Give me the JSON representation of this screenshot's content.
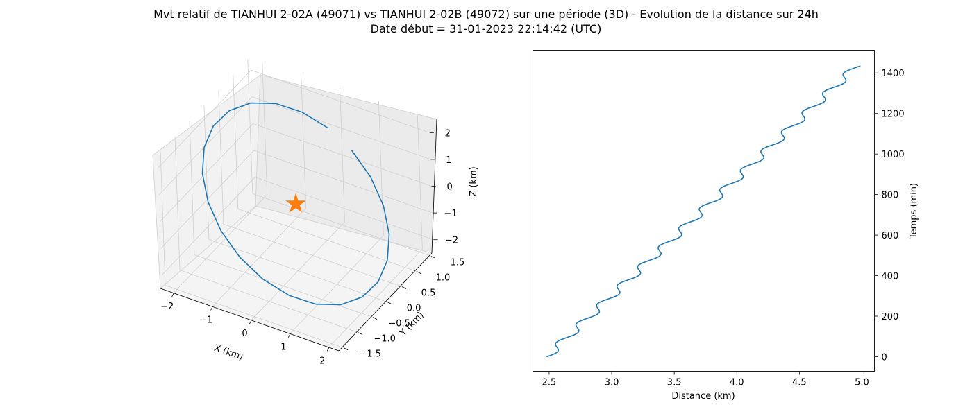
{
  "title_line1": "Mvt relatif de TIANHUI 2-02A (49071) vs TIANHUI 2-02B (49072) sur une période (3D) - Evolution de la distance sur 24h",
  "title_line2": "Date début = 31-01-2023 22:14:42 (UTC)",
  "colors": {
    "line": "#1f77b4",
    "star": "#ff7f0e",
    "pane": "#f2f2f2",
    "grid": "#d0d0d0"
  },
  "chart_data": [
    {
      "type": "line",
      "projection": "3d",
      "xlabel": "X (km)",
      "ylabel": "Y (km)",
      "zlabel": "Z (km)",
      "xlim": [
        -2.3,
        2.3
      ],
      "ylim": [
        -1.6,
        1.6
      ],
      "zlim": [
        -2.5,
        2.5
      ],
      "xticks": [
        "−2",
        "−1",
        "0",
        "1",
        "2"
      ],
      "yticks": [
        "−1.5",
        "−1.0",
        "−0.5",
        "0.0",
        "0.5",
        "1.0",
        "1.5"
      ],
      "zticks": [
        "2",
        "1",
        "0",
        "−1",
        "−2"
      ],
      "grid": true,
      "orbit": {
        "x_amplitude": 2.2,
        "y_amplitude": 1.25,
        "z_amplitude": 2.0,
        "segments": 22
      },
      "marker": {
        "shape": "star",
        "x": 0,
        "y": 0,
        "z": 0
      }
    },
    {
      "type": "line",
      "xlabel": "Distance (km)",
      "ylabel": "Temps (min)",
      "xlim": [
        2.37,
        5.1
      ],
      "ylim": [
        -72,
        1512
      ],
      "xticks": [
        "2.5",
        "3.0",
        "3.5",
        "4.0",
        "4.5",
        "5.0"
      ],
      "yticks": [
        "0",
        "200",
        "400",
        "600",
        "800",
        "1000",
        "1200",
        "1400"
      ],
      "yaxis_side": "right",
      "grid": false,
      "series": {
        "time_range_min": [
          0,
          1435
        ],
        "distance_range_km": [
          2.48,
          4.96
        ],
        "oscillation_period_min": 95,
        "oscillation_amplitude_km": 0.045
      }
    }
  ]
}
